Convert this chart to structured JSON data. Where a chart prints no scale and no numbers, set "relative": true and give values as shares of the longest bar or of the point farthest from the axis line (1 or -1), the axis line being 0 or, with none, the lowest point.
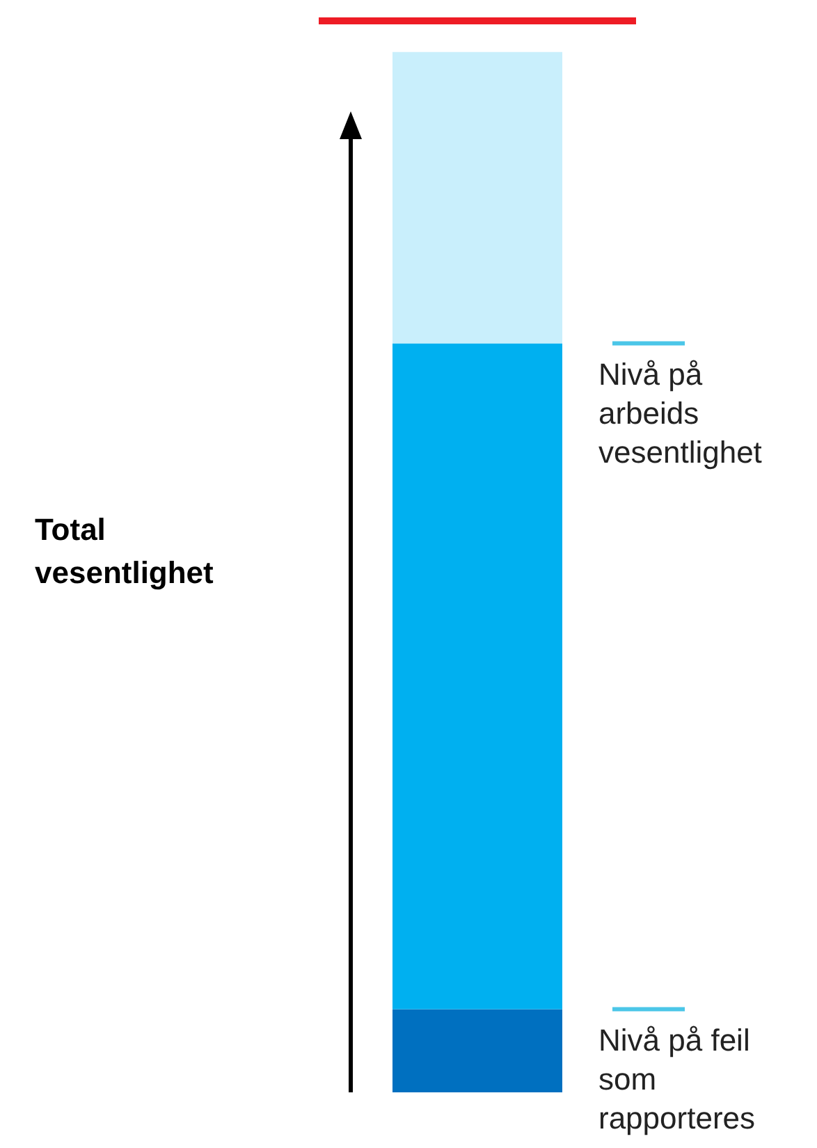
{
  "chart_data": {
    "type": "bar",
    "relative": true,
    "stacked": true,
    "categories": [
      null
    ],
    "annotations": [
      "Total vesentlighet"
    ],
    "series": [
      {
        "color": "#0070c0",
        "values": [
          0.08
        ]
      },
      {
        "color": "#00b0f0",
        "values": [
          0.64
        ]
      },
      {
        "color": "#c9effc",
        "values": [
          0.28
        ]
      }
    ],
    "ref_lines": [
      {
        "axis": "y",
        "value": 1.03,
        "color": "#ee1c25"
      },
      {
        "axis": "y",
        "value": 0.72,
        "label": "Nivå på arbeids vesentlighet",
        "color": "#4bc6e8"
      },
      {
        "axis": "y",
        "value": 0.08,
        "label": "Nivå på feil som rapporteres",
        "color": "#4bc6e8"
      }
    ],
    "legend": false,
    "grid": false
  }
}
